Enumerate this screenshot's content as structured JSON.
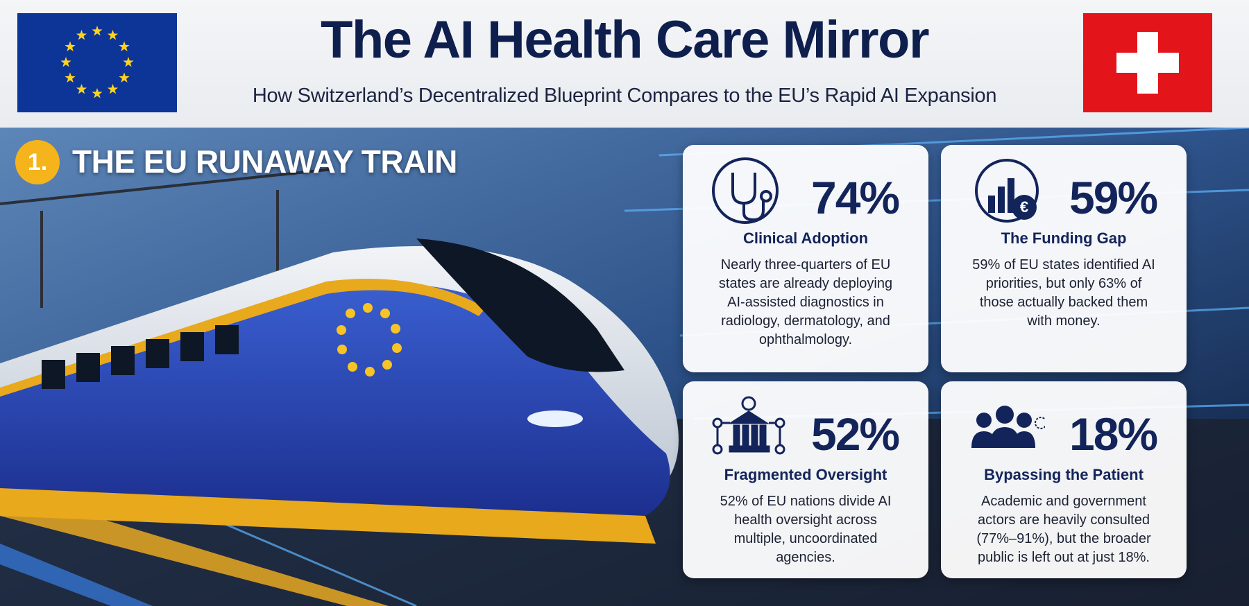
{
  "header": {
    "title": "The AI Health Care Mirror",
    "subtitle": "How Switzerland’s Decentralized Blueprint Compares to the EU’s Rapid AI Expansion"
  },
  "section": {
    "number": "1.",
    "title": "THE EU RUNAWAY TRAIN"
  },
  "cards": [
    {
      "stat": "74%",
      "label": "Clinical Adoption",
      "description": "Nearly three-quarters of EU states are already deploying AI-assisted diagnostics in radiology, dermatology, and ophthalmology."
    },
    {
      "stat": "59%",
      "label": "The Funding Gap",
      "description": "59% of EU states identified AI priorities, but only 63% of those actually backed them with money."
    },
    {
      "stat": "52%",
      "label": "Fragmented Oversight",
      "description": "52% of EU nations divide AI health oversight across multiple, uncoordinated agencies."
    },
    {
      "stat": "18%",
      "label": "Bypassing the Patient",
      "description": "Academic and government actors are heavily consulted (77%–91%), but the broader public is left out at just 18%."
    }
  ]
}
